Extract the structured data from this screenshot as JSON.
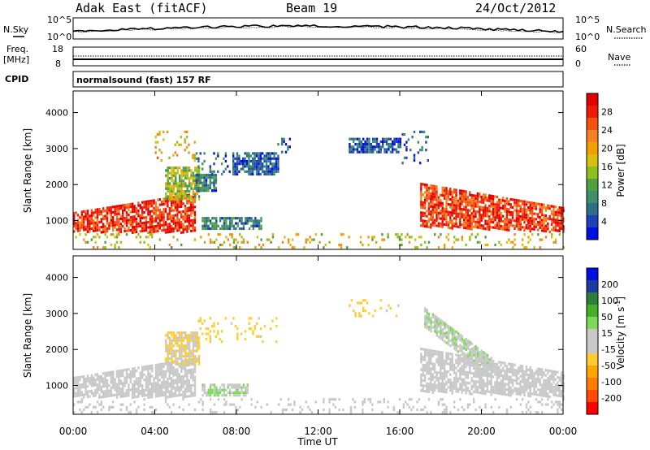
{
  "header": {
    "site": "Adak East (fitACF)",
    "beam": "Beam 19",
    "date": "24/Oct/2012"
  },
  "noise_panel": {
    "left_label": "N.Sky",
    "right_label": "N.Search",
    "ticks_left": [
      "10^5",
      "10^0"
    ],
    "ticks_right": [
      "10^5",
      "10^0"
    ]
  },
  "freq_panel": {
    "left_label_1": "Freq.",
    "left_label_2": "[MHz]",
    "left_ticks": [
      "18",
      "8"
    ],
    "right_ticks": [
      "60",
      "0"
    ],
    "right_label": "Nave"
  },
  "cpid": {
    "label": "CPID",
    "text": "normalsound (fast) 157 RF"
  },
  "colors": {
    "power_scale": [
      "#0010e0",
      "#1e40b8",
      "#2f6e88",
      "#3f8f6a",
      "#4fa040",
      "#8cc020",
      "#d8c010",
      "#f0a000",
      "#f58020",
      "#f45010",
      "#ee1a08",
      "#e00000"
    ],
    "velocity_scale": [
      "#ff0000",
      "#ff4a00",
      "#ff7c00",
      "#ffa500",
      "#ffcc33",
      "#c8c8c8",
      "#c8c8c8",
      "#7ed957",
      "#43b028",
      "#2f7d3a",
      "#1e3aa0",
      "#0010e0"
    ],
    "grey": "#c8c8c8"
  },
  "chart_data": [
    {
      "type": "heatmap",
      "name": "power",
      "title": "",
      "ylabel": "Slant Range [km]",
      "xlabel": "",
      "ylim": [
        200,
        4600
      ],
      "yticks": [
        "1000",
        "2000",
        "3000",
        "4000"
      ],
      "xlim": [
        0,
        24
      ],
      "colorbar": {
        "label": "Power [dB]",
        "ticks": [
          "4",
          "8",
          "12",
          "16",
          "20",
          "24",
          "28"
        ],
        "range": [
          0,
          30
        ]
      },
      "patches": [
        {
          "hours": [
            0,
            6.0
          ],
          "range": [
            700,
            1900
          ],
          "value": 26,
          "shape": "early-arc"
        },
        {
          "hours": [
            4.5,
            6.2
          ],
          "range": [
            1600,
            2500
          ],
          "value": 14
        },
        {
          "hours": [
            4.0,
            6.0
          ],
          "range": [
            2700,
            3500
          ],
          "value": 18,
          "sparse": true
        },
        {
          "hours": [
            6.0,
            7.0
          ],
          "range": [
            1800,
            2300
          ],
          "value": 7
        },
        {
          "hours": [
            6.0,
            7.7
          ],
          "range": [
            2200,
            2900
          ],
          "value": 6,
          "sparse": true
        },
        {
          "hours": [
            6.3,
            9.2
          ],
          "range": [
            800,
            1100
          ],
          "value": 7
        },
        {
          "hours": [
            7.8,
            10.0
          ],
          "range": [
            2300,
            2900
          ],
          "value": 5
        },
        {
          "hours": [
            10.0,
            11.0
          ],
          "range": [
            2900,
            3300
          ],
          "value": 4,
          "sparse": true
        },
        {
          "hours": [
            13.5,
            16.0
          ],
          "range": [
            2900,
            3300
          ],
          "value": 5
        },
        {
          "hours": [
            16.0,
            17.5
          ],
          "range": [
            2600,
            3500
          ],
          "value": 5,
          "sparse": true
        },
        {
          "hours": [
            17.0,
            24.0
          ],
          "range": [
            700,
            2200
          ],
          "value": 25,
          "shape": "late-arc"
        },
        {
          "hours": [
            0,
            24
          ],
          "range": [
            250,
            650
          ],
          "value": 16,
          "sparse": true
        }
      ]
    },
    {
      "type": "heatmap",
      "name": "velocity",
      "title": "",
      "ylabel": "Slant Range [km]",
      "xlabel": "Time UT",
      "ylim": [
        200,
        4600
      ],
      "yticks": [
        "1000",
        "2000",
        "3000",
        "4000"
      ],
      "xlim": [
        0,
        24
      ],
      "xticks": [
        "00:00",
        "04:00",
        "08:00",
        "12:00",
        "16:00",
        "20:00",
        "00:00"
      ],
      "colorbar": {
        "label": "Velocity [m s^-1]",
        "ticks": [
          "200",
          "100",
          "50",
          "15",
          "-15",
          "-50",
          "-100",
          "-200"
        ],
        "range": [
          -250,
          250
        ]
      },
      "patches": [
        {
          "hours": [
            0,
            6.0
          ],
          "range": [
            700,
            1900
          ],
          "value": 0,
          "shape": "early-arc"
        },
        {
          "hours": [
            4.5,
            6.2
          ],
          "range": [
            1600,
            2500
          ],
          "value": -40
        },
        {
          "hours": [
            6.3,
            8.5
          ],
          "range": [
            750,
            1050
          ],
          "value": 35
        },
        {
          "hours": [
            6.0,
            10.0
          ],
          "range": [
            2200,
            2900
          ],
          "value": -60,
          "sparse": true
        },
        {
          "hours": [
            13.5,
            16.0
          ],
          "range": [
            2900,
            3400
          ],
          "value": -60,
          "sparse": true
        },
        {
          "hours": [
            17.2,
            20.5
          ],
          "range": [
            1500,
            2900
          ],
          "value": 35,
          "shape": "diagonal"
        },
        {
          "hours": [
            17.0,
            24.0
          ],
          "range": [
            700,
            2200
          ],
          "value": 0,
          "shape": "late-arc"
        },
        {
          "hours": [
            0,
            24
          ],
          "range": [
            250,
            650
          ],
          "value": 0,
          "sparse": true
        }
      ]
    }
  ]
}
